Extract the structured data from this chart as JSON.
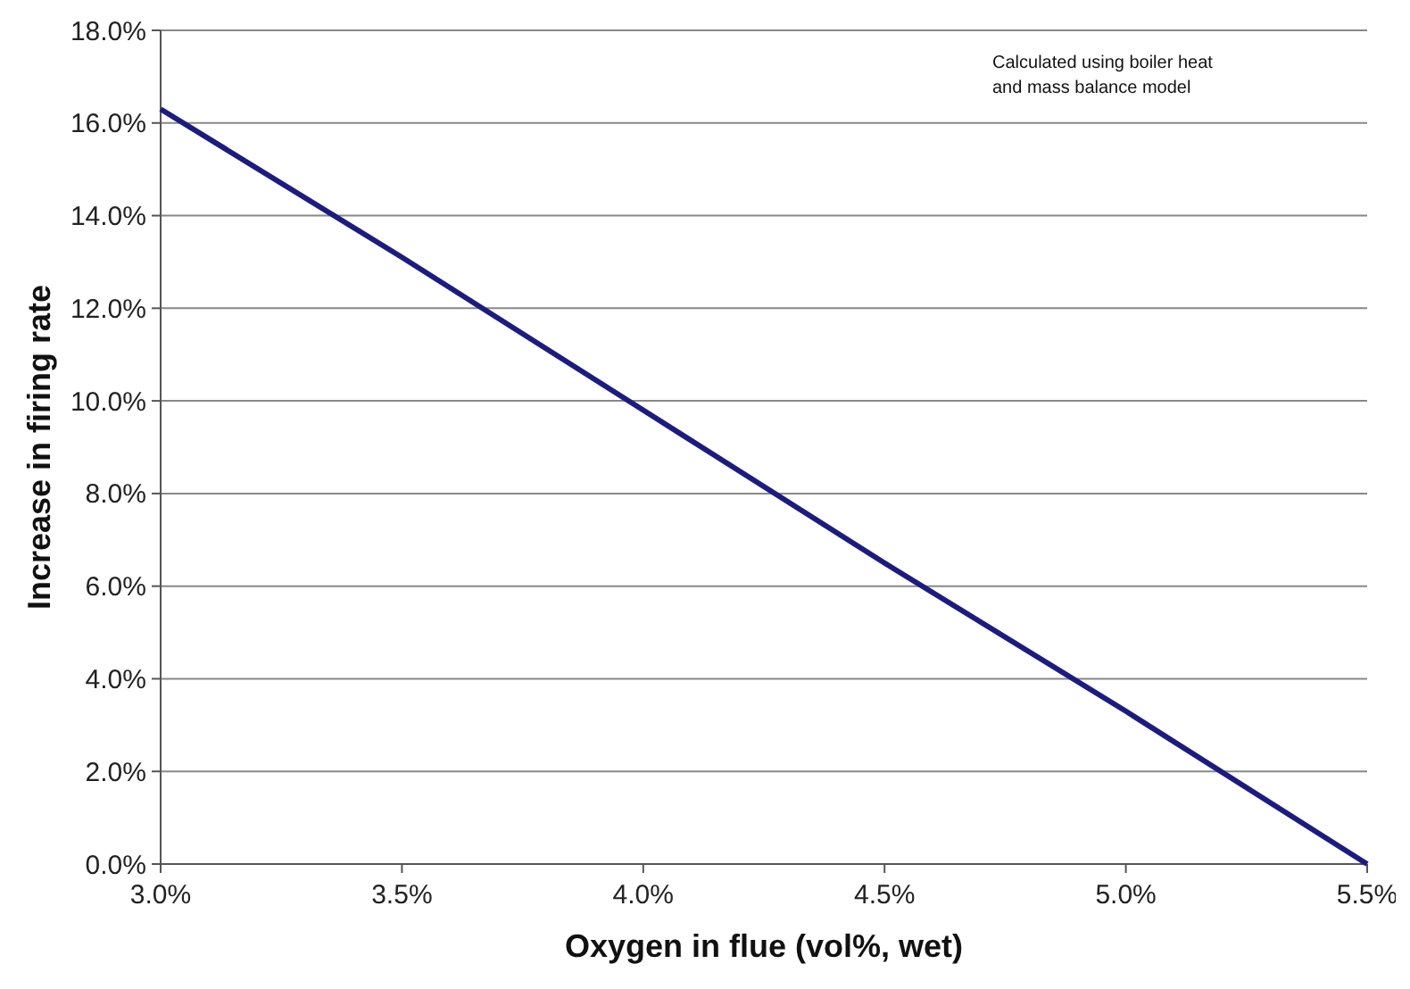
{
  "chart_data": {
    "type": "line",
    "xlabel": "Oxygen in flue (vol%, wet)",
    "ylabel": "Increase in firing rate",
    "annotations": [
      "Calculated using boiler heat\nand mass balance model"
    ],
    "x": [
      3.0,
      3.5,
      4.0,
      4.5,
      5.0,
      5.5
    ],
    "series": [
      {
        "color": "#1c1c80",
        "values": [
          16.3,
          13.1,
          9.8,
          6.5,
          3.3,
          0.0
        ]
      }
    ],
    "xlim": [
      3.0,
      5.5
    ],
    "xticks": [
      {
        "value": 3.0,
        "label": "3.0%"
      },
      {
        "value": 3.5,
        "label": "3.5%"
      },
      {
        "value": 4.0,
        "label": "4.0%"
      },
      {
        "value": 4.5,
        "label": "4.5%"
      },
      {
        "value": 5.0,
        "label": "5.0%"
      },
      {
        "value": 5.5,
        "label": "5.5%"
      }
    ],
    "ylim": [
      0,
      18
    ],
    "yticks": [
      {
        "value": 0,
        "label": "0.0%"
      },
      {
        "value": 2,
        "label": "2.0%"
      },
      {
        "value": 4,
        "label": "4.0%"
      },
      {
        "value": 6,
        "label": "6.0%"
      },
      {
        "value": 8,
        "label": "8.0%"
      },
      {
        "value": 10,
        "label": "10.0%"
      },
      {
        "value": 12,
        "label": "12.0%"
      },
      {
        "value": 14,
        "label": "14.0%"
      },
      {
        "value": 16,
        "label": "16.0%"
      },
      {
        "value": 18,
        "label": "18.0%"
      }
    ],
    "grid": "y",
    "marker": "none",
    "line_style": "solid"
  }
}
